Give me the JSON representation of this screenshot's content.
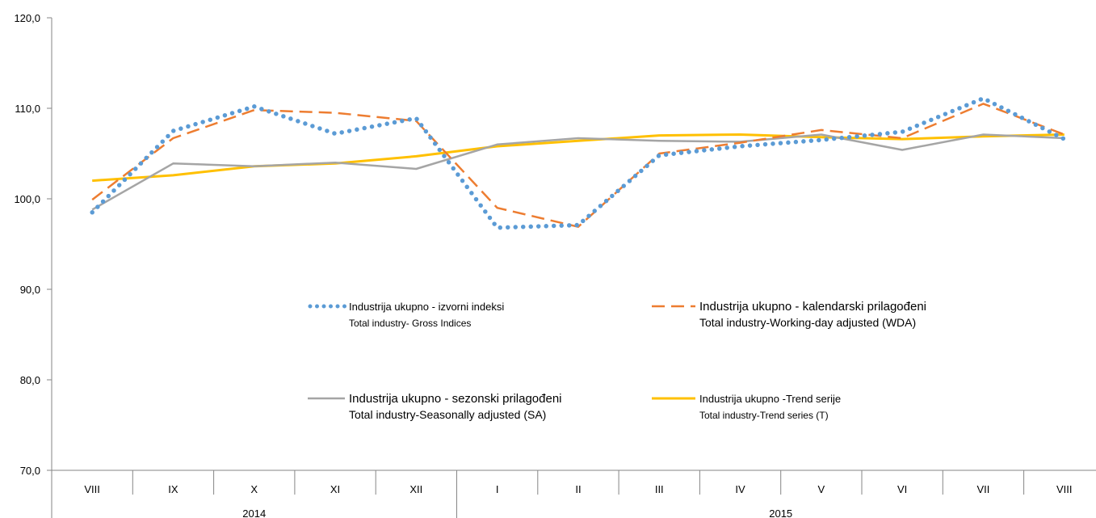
{
  "chart_data": {
    "type": "line",
    "categories": [
      "VIII",
      "IX",
      "X",
      "XI",
      "XII",
      "I",
      "II",
      "III",
      "IV",
      "V",
      "VI",
      "VII",
      "VIII"
    ],
    "groups": [
      {
        "label": "2014",
        "from": 0,
        "to": 4
      },
      {
        "label": "2015",
        "from": 5,
        "to": 12
      }
    ],
    "ylim": [
      70,
      120
    ],
    "yticks": [
      "70,0",
      "80,0",
      "90,0",
      "100,0",
      "110,0",
      "120,0"
    ],
    "grid": false,
    "legend_position": "center",
    "series": [
      {
        "name": "Industrija ukupno - izvorni indeksi",
        "name_en": "Total industry- Gross Indices",
        "color": "#5B9BD5",
        "style": "dotted",
        "values": [
          98.5,
          107.5,
          110.2,
          107.2,
          108.9,
          96.8,
          97.1,
          104.8,
          105.8,
          106.5,
          107.4,
          111.1,
          106.6
        ]
      },
      {
        "name": "Industrija ukupno - kalendarski prilagođeni",
        "name_en": "Total industry-Working-day adjusted (WDA)",
        "color": "#ED7D31",
        "style": "dashed",
        "values": [
          99.9,
          106.7,
          109.8,
          109.5,
          108.6,
          99.0,
          96.9,
          105.0,
          106.2,
          107.6,
          106.7,
          110.5,
          107.1
        ]
      },
      {
        "name": "Industrija ukupno - sezonski prilagođeni",
        "name_en": "Total industry-Seasonally adjusted (SA)",
        "color": "#A5A5A5",
        "style": "solid",
        "values": [
          98.8,
          103.9,
          103.6,
          104.0,
          103.3,
          106.0,
          106.7,
          106.4,
          106.3,
          107.1,
          105.4,
          107.1,
          106.7
        ]
      },
      {
        "name": "Industrija ukupno -Trend serije",
        "name_en": "Total industry-Trend series (T)",
        "color": "#FFC000",
        "style": "solid",
        "values": [
          102.0,
          102.6,
          103.6,
          103.9,
          104.7,
          105.8,
          106.4,
          107.0,
          107.1,
          106.8,
          106.6,
          106.9,
          107.1
        ]
      }
    ]
  }
}
